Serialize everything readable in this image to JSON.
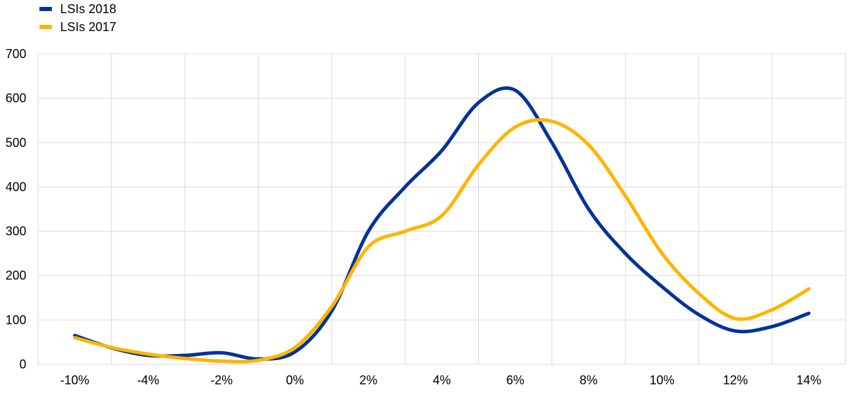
{
  "chart_data": {
    "type": "line",
    "title": "",
    "xlabel": "",
    "ylabel": "",
    "categories": [
      "-10%",
      "-4%",
      "-2%",
      "0%",
      "2%",
      "4%",
      "6%",
      "8%",
      "10%",
      "12%",
      "14%"
    ],
    "x_tick_labels": [
      "-10%",
      "-4%",
      "-2%",
      "0%",
      "2%",
      "4%",
      "6%",
      "8%",
      "10%",
      "12%",
      "14%"
    ],
    "y_ticks": [
      0,
      100,
      200,
      300,
      400,
      500,
      600,
      700
    ],
    "ylim": [
      0,
      700
    ],
    "grid": true,
    "legend_position": "top-left",
    "series": [
      {
        "name": "LSIs 2018",
        "color": "#003299",
        "points": [
          [
            0,
            65
          ],
          [
            0.5,
            37
          ],
          [
            1,
            20
          ],
          [
            1.5,
            20
          ],
          [
            2,
            26
          ],
          [
            2.5,
            12
          ],
          [
            3,
            28
          ],
          [
            3.5,
            120
          ],
          [
            4,
            300
          ],
          [
            4.5,
            400
          ],
          [
            5,
            482
          ],
          [
            5.5,
            590
          ],
          [
            6,
            618
          ],
          [
            6.5,
            500
          ],
          [
            7,
            350
          ],
          [
            7.5,
            250
          ],
          [
            8,
            175
          ],
          [
            8.5,
            112
          ],
          [
            9,
            75
          ],
          [
            9.5,
            85
          ],
          [
            10,
            115
          ]
        ]
      },
      {
        "name": "LSIs 2017",
        "color": "#FFB400",
        "points": [
          [
            0,
            60
          ],
          [
            0.5,
            38
          ],
          [
            1,
            23
          ],
          [
            1.5,
            13
          ],
          [
            2,
            7
          ],
          [
            2.5,
            9
          ],
          [
            3,
            38
          ],
          [
            3.5,
            130
          ],
          [
            4,
            265
          ],
          [
            4.5,
            300
          ],
          [
            5,
            335
          ],
          [
            5.5,
            450
          ],
          [
            6,
            535
          ],
          [
            6.5,
            548
          ],
          [
            7,
            495
          ],
          [
            7.5,
            380
          ],
          [
            8,
            250
          ],
          [
            8.5,
            160
          ],
          [
            9,
            103
          ],
          [
            9.5,
            123
          ],
          [
            10,
            170
          ]
        ]
      }
    ]
  }
}
